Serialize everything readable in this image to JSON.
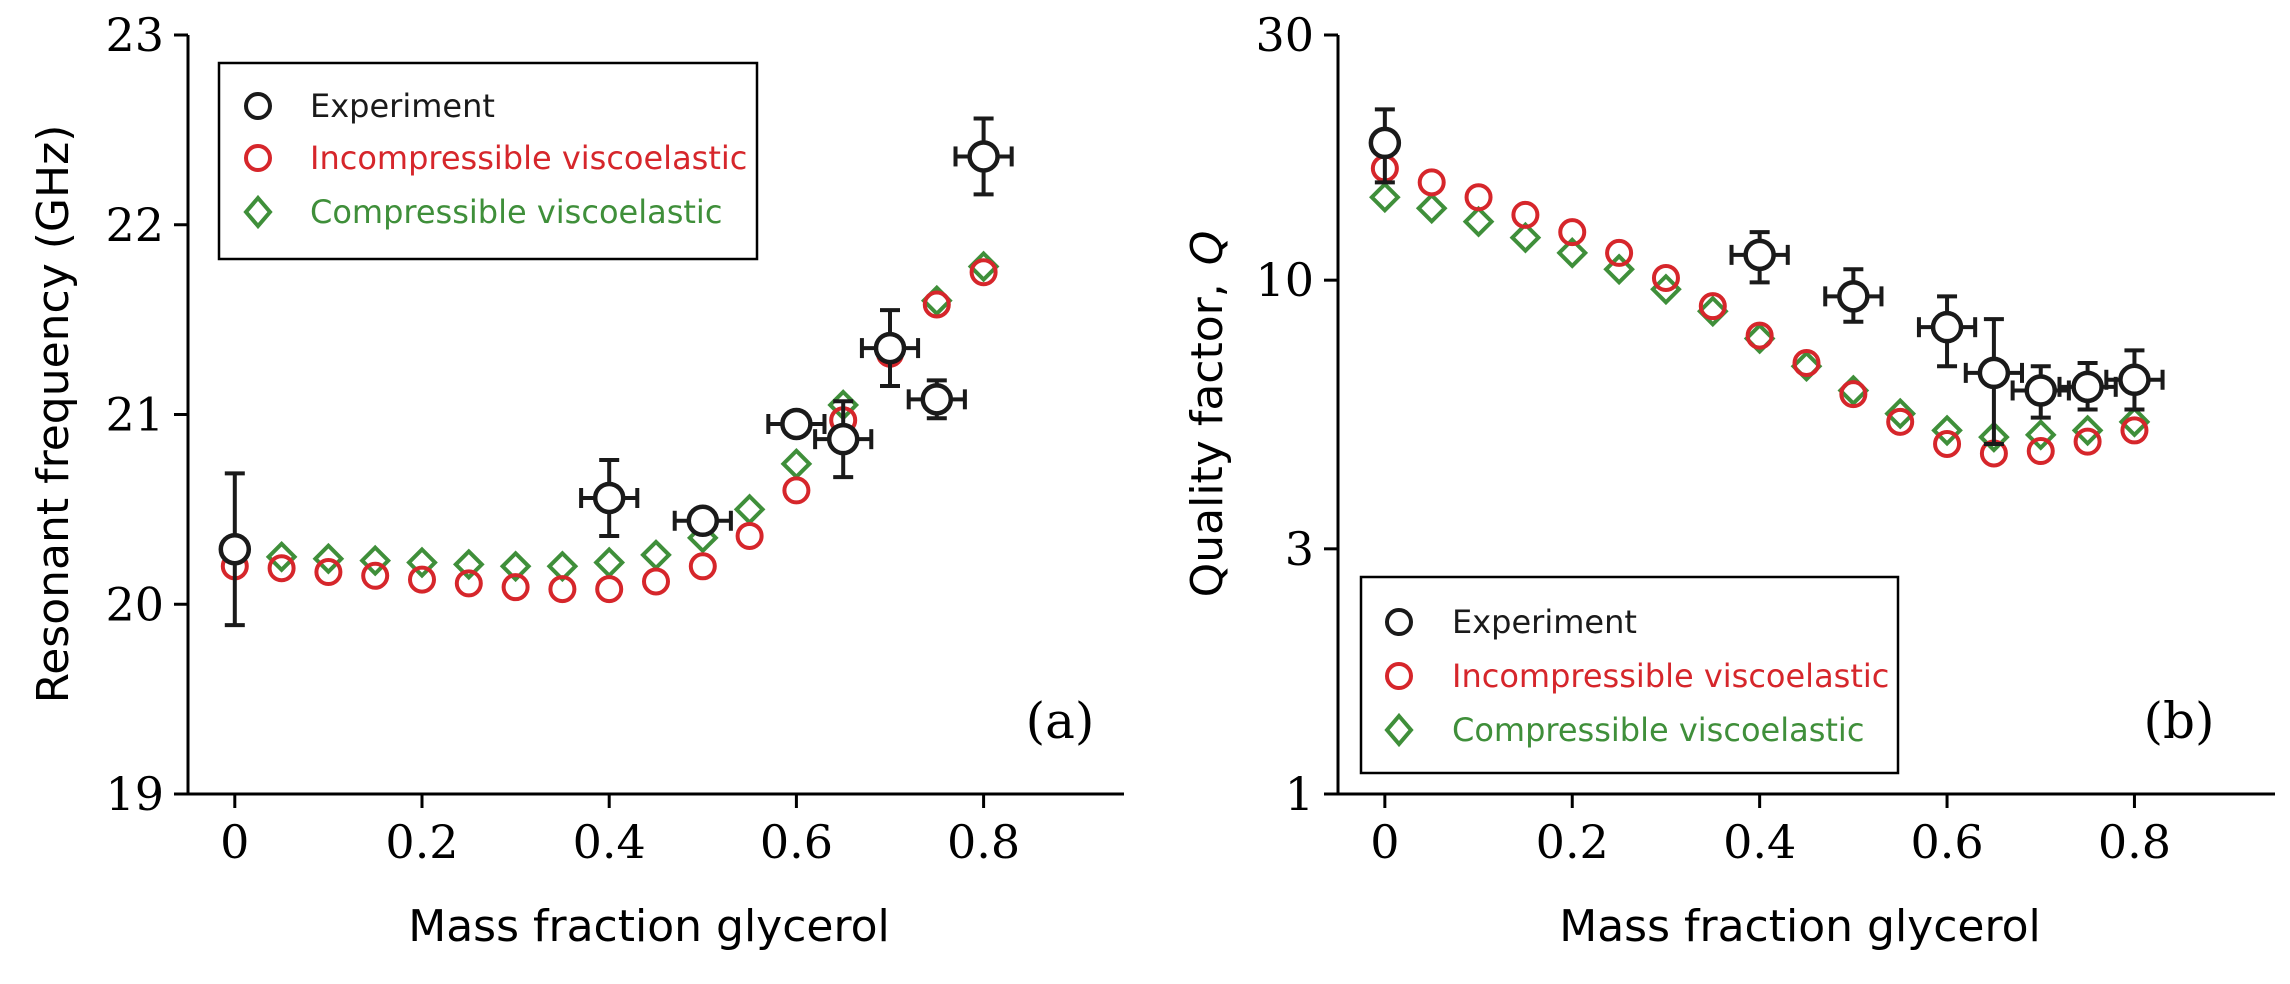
{
  "chart_data": [
    {
      "type": "scatter",
      "panel_label": "(a)",
      "xlabel": "Mass fraction glycerol",
      "ylabel": "Resonant frequency (GHz)",
      "xlim": [
        -0.05,
        0.95
      ],
      "ylim": [
        19,
        23
      ],
      "y_scale": "linear",
      "x_ticks": [
        0,
        0.2,
        0.4,
        0.6,
        0.8
      ],
      "x_tick_labels": [
        "0",
        "0.2",
        "0.4",
        "0.6",
        "0.8"
      ],
      "y_ticks": [
        19,
        20,
        21,
        22,
        23
      ],
      "y_tick_labels": [
        "19",
        "20",
        "21",
        "22",
        "23"
      ],
      "legend_position": "top-left",
      "series": [
        {
          "name": "Experiment",
          "marker": "circle",
          "color": "#1a1a1a",
          "points": [
            {
              "x": 0.0,
              "y": 20.29,
              "yerr": 0.4,
              "xerr": 0
            },
            {
              "x": 0.4,
              "y": 20.56,
              "yerr": 0.2,
              "xerr": 0.03
            },
            {
              "x": 0.5,
              "y": 20.44,
              "yerr": 0.05,
              "xerr": 0.03
            },
            {
              "x": 0.6,
              "y": 20.95,
              "yerr": 0.04,
              "xerr": 0.03
            },
            {
              "x": 0.65,
              "y": 20.87,
              "yerr": 0.2,
              "xerr": 0.03
            },
            {
              "x": 0.7,
              "y": 21.35,
              "yerr": 0.2,
              "xerr": 0.03
            },
            {
              "x": 0.75,
              "y": 21.08,
              "yerr": 0.1,
              "xerr": 0.03
            },
            {
              "x": 0.8,
              "y": 22.36,
              "yerr": 0.2,
              "xerr": 0.03
            }
          ]
        },
        {
          "name": "Incompressible viscoelastic",
          "marker": "circle",
          "color": "#d6262b",
          "points": [
            {
              "x": 0.0,
              "y": 20.2
            },
            {
              "x": 0.05,
              "y": 20.19
            },
            {
              "x": 0.1,
              "y": 20.17
            },
            {
              "x": 0.15,
              "y": 20.15
            },
            {
              "x": 0.2,
              "y": 20.13
            },
            {
              "x": 0.25,
              "y": 20.11
            },
            {
              "x": 0.3,
              "y": 20.09
            },
            {
              "x": 0.35,
              "y": 20.08
            },
            {
              "x": 0.4,
              "y": 20.08
            },
            {
              "x": 0.45,
              "y": 20.12
            },
            {
              "x": 0.5,
              "y": 20.2
            },
            {
              "x": 0.55,
              "y": 20.36
            },
            {
              "x": 0.6,
              "y": 20.6
            },
            {
              "x": 0.65,
              "y": 20.97
            },
            {
              "x": 0.7,
              "y": 21.32
            },
            {
              "x": 0.75,
              "y": 21.58
            },
            {
              "x": 0.8,
              "y": 21.75
            }
          ]
        },
        {
          "name": "Compressible viscoelastic",
          "marker": "diamond",
          "color": "#3f8f3a",
          "points": [
            {
              "x": 0.05,
              "y": 20.25
            },
            {
              "x": 0.1,
              "y": 20.24
            },
            {
              "x": 0.15,
              "y": 20.23
            },
            {
              "x": 0.2,
              "y": 20.22
            },
            {
              "x": 0.25,
              "y": 20.21
            },
            {
              "x": 0.3,
              "y": 20.2
            },
            {
              "x": 0.35,
              "y": 20.2
            },
            {
              "x": 0.4,
              "y": 20.22
            },
            {
              "x": 0.45,
              "y": 20.26
            },
            {
              "x": 0.5,
              "y": 20.35
            },
            {
              "x": 0.55,
              "y": 20.5
            },
            {
              "x": 0.6,
              "y": 20.74
            },
            {
              "x": 0.65,
              "y": 21.05
            },
            {
              "x": 0.7,
              "y": 21.35
            },
            {
              "x": 0.75,
              "y": 21.6
            },
            {
              "x": 0.8,
              "y": 21.78
            }
          ]
        }
      ]
    },
    {
      "type": "scatter",
      "panel_label": "(b)",
      "xlabel": "Mass fraction glycerol",
      "ylabel": "Quality factor,",
      "ylabel_symbol": "Q",
      "xlim": [
        -0.05,
        0.95
      ],
      "ylim": [
        1,
        30
      ],
      "y_scale": "log",
      "x_ticks": [
        0,
        0.2,
        0.4,
        0.6,
        0.8
      ],
      "x_tick_labels": [
        "0",
        "0.2",
        "0.4",
        "0.6",
        "0.8"
      ],
      "y_ticks": [
        1,
        3,
        10,
        30
      ],
      "y_tick_labels": [
        "1",
        "3",
        "10",
        "30"
      ],
      "legend_position": "bottom-left",
      "series": [
        {
          "name": "Experiment",
          "marker": "circle",
          "color": "#1a1a1a",
          "points": [
            {
              "x": 0.0,
              "y": 18.5,
              "ylo": 15.5,
              "yhi": 21.5,
              "xerr": 0
            },
            {
              "x": 0.4,
              "y": 11.2,
              "ylo": 9.9,
              "yhi": 12.4,
              "xerr": 0.03
            },
            {
              "x": 0.5,
              "y": 9.3,
              "ylo": 8.3,
              "yhi": 10.5,
              "xerr": 0.03
            },
            {
              "x": 0.6,
              "y": 8.1,
              "ylo": 6.8,
              "yhi": 9.3,
              "xerr": 0.03
            },
            {
              "x": 0.65,
              "y": 6.6,
              "ylo": 4.8,
              "yhi": 8.4,
              "xerr": 0.03
            },
            {
              "x": 0.7,
              "y": 6.1,
              "ylo": 5.4,
              "yhi": 6.8,
              "xerr": 0.03
            },
            {
              "x": 0.75,
              "y": 6.2,
              "ylo": 5.6,
              "yhi": 6.9,
              "xerr": 0.03
            },
            {
              "x": 0.8,
              "y": 6.4,
              "ylo": 5.6,
              "yhi": 7.3,
              "xerr": 0.03
            }
          ]
        },
        {
          "name": "Incompressible viscoelastic",
          "marker": "circle",
          "color": "#d6262b",
          "points": [
            {
              "x": 0.0,
              "y": 16.5
            },
            {
              "x": 0.05,
              "y": 15.5
            },
            {
              "x": 0.1,
              "y": 14.5
            },
            {
              "x": 0.15,
              "y": 13.4
            },
            {
              "x": 0.2,
              "y": 12.4
            },
            {
              "x": 0.25,
              "y": 11.3
            },
            {
              "x": 0.3,
              "y": 10.1
            },
            {
              "x": 0.35,
              "y": 8.9
            },
            {
              "x": 0.4,
              "y": 7.8
            },
            {
              "x": 0.45,
              "y": 6.9
            },
            {
              "x": 0.5,
              "y": 6.0
            },
            {
              "x": 0.55,
              "y": 5.3
            },
            {
              "x": 0.6,
              "y": 4.8
            },
            {
              "x": 0.65,
              "y": 4.6
            },
            {
              "x": 0.7,
              "y": 4.65
            },
            {
              "x": 0.75,
              "y": 4.85
            },
            {
              "x": 0.8,
              "y": 5.1
            }
          ]
        },
        {
          "name": "Compressible viscoelastic",
          "marker": "diamond",
          "color": "#3f8f3a",
          "points": [
            {
              "x": 0.0,
              "y": 14.5
            },
            {
              "x": 0.05,
              "y": 13.8
            },
            {
              "x": 0.1,
              "y": 13.0
            },
            {
              "x": 0.15,
              "y": 12.1
            },
            {
              "x": 0.2,
              "y": 11.3
            },
            {
              "x": 0.25,
              "y": 10.5
            },
            {
              "x": 0.3,
              "y": 9.6
            },
            {
              "x": 0.35,
              "y": 8.7
            },
            {
              "x": 0.4,
              "y": 7.7
            },
            {
              "x": 0.45,
              "y": 6.8
            },
            {
              "x": 0.5,
              "y": 6.1
            },
            {
              "x": 0.55,
              "y": 5.5
            },
            {
              "x": 0.6,
              "y": 5.1
            },
            {
              "x": 0.65,
              "y": 4.95
            },
            {
              "x": 0.7,
              "y": 5.0
            },
            {
              "x": 0.75,
              "y": 5.1
            },
            {
              "x": 0.8,
              "y": 5.3
            }
          ]
        }
      ]
    }
  ]
}
